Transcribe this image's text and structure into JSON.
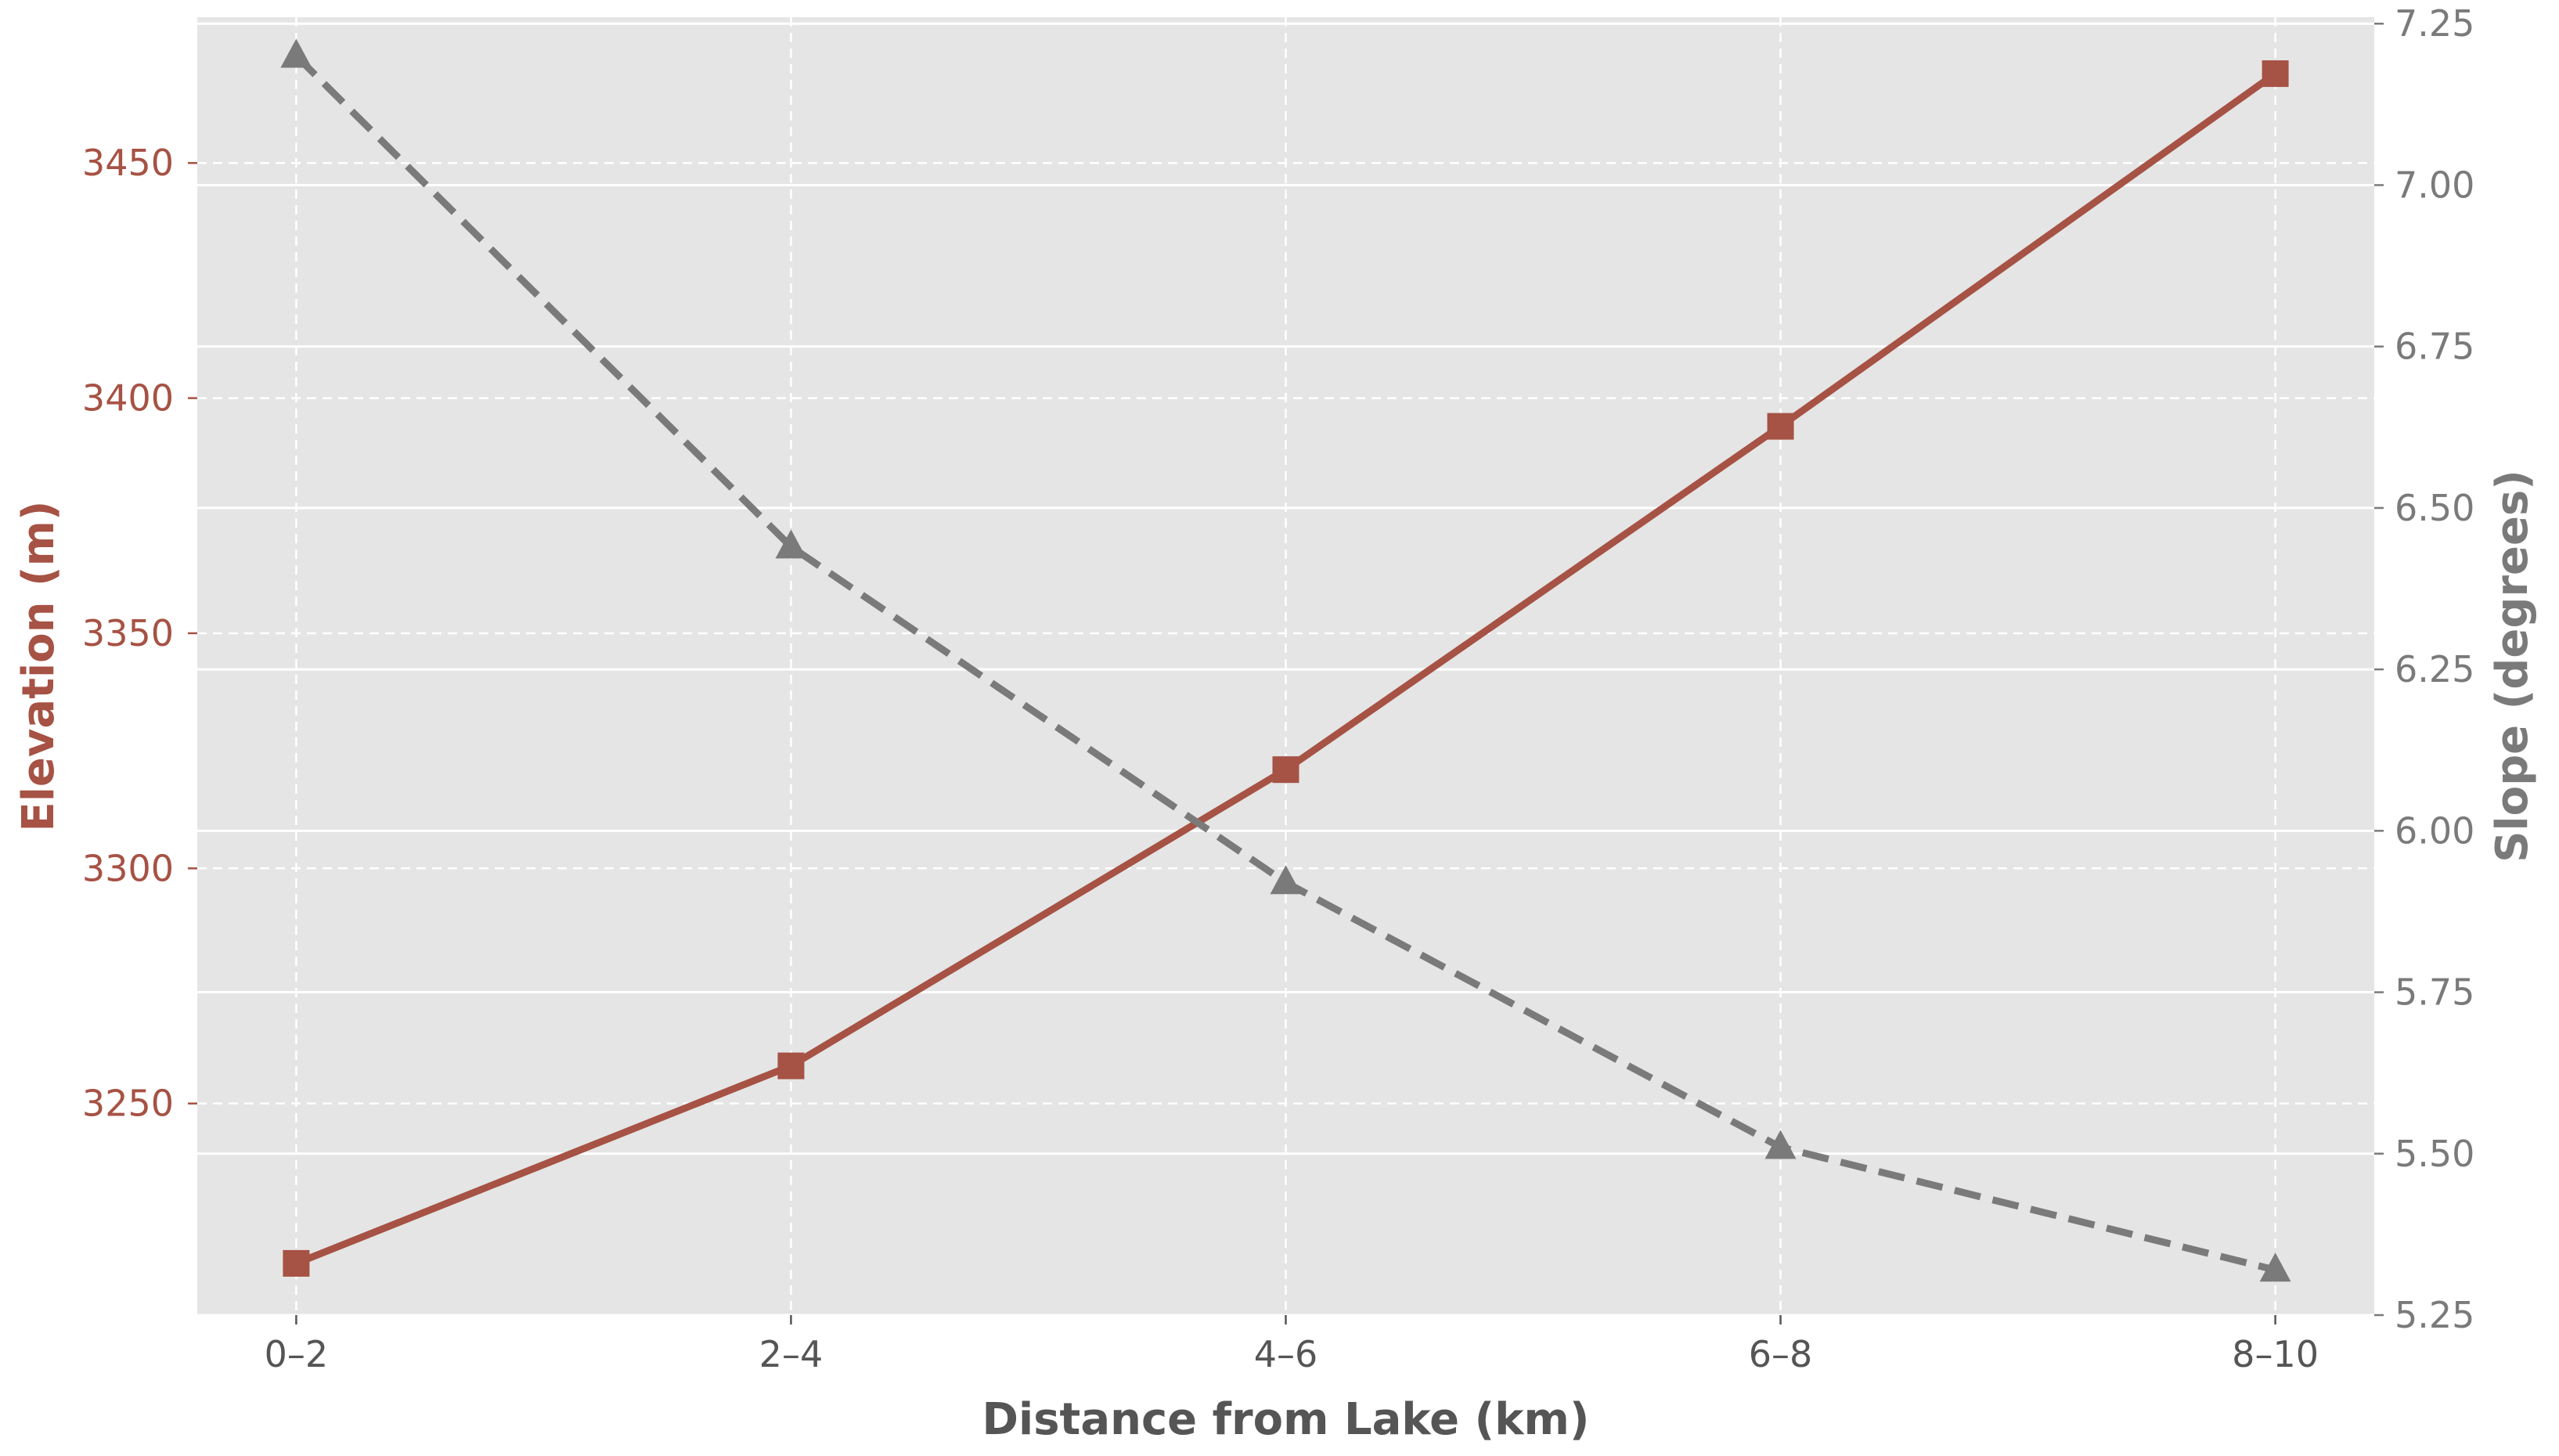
{
  "chart_data": {
    "type": "line",
    "categories": [
      "0–2",
      "2–4",
      "4–6",
      "6–8",
      "8–10"
    ],
    "xlabel": "Distance from Lake (km)",
    "ylabel": "Elevation (m)",
    "y2label": "Slope (degrees)",
    "ylim": [
      3205,
      3481
    ],
    "y2lim": [
      5.25,
      7.26
    ],
    "yticks": [
      3250,
      3300,
      3350,
      3400,
      3450
    ],
    "y2ticks": [
      "5.25",
      "5.50",
      "5.75",
      "6.00",
      "6.25",
      "6.50",
      "6.75",
      "7.00",
      "7.25"
    ],
    "grid": true,
    "series": [
      {
        "axis": "left",
        "values": [
          3216,
          3258,
          3321,
          3394,
          3469
        ],
        "color": "#a65244",
        "marker": "square",
        "linestyle": "solid"
      },
      {
        "axis": "right",
        "values": [
          7.2,
          6.44,
          5.92,
          5.51,
          5.32
        ],
        "color": "#7a7a7a",
        "marker": "triangle",
        "linestyle": "dashed"
      }
    ],
    "colors": {
      "left_axis": "#a65244",
      "right_axis": "#7a7a7a",
      "plot_background": "#e5e5e5",
      "xlabel": "#555555"
    }
  }
}
